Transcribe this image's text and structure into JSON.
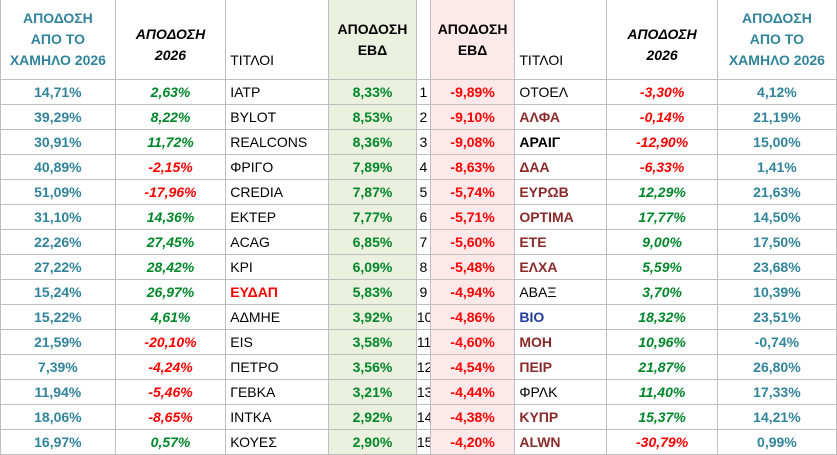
{
  "headers": {
    "left_from_low": [
      "ΑΠΟΔΟΣΗ",
      "ΑΠΟ ΤΟ",
      "ΧΑΜΗΛΟ 2026"
    ],
    "left_ytd": [
      "ΑΠΟΔΟΣΗ",
      "2026"
    ],
    "left_titles": "ΤΙΤΛΟΙ",
    "left_week": [
      "ΑΠΟΔΟΣΗ",
      "ΕΒΔ"
    ],
    "right_week": [
      "ΑΠΟΔΟΣΗ",
      "ΕΒΔ"
    ],
    "right_titles": "ΤΙΤΛΟΙ",
    "right_ytd": [
      "ΑΠΟΔΟΣΗ",
      "2026"
    ],
    "right_from_low": [
      "ΑΠΟΔΟΣΗ",
      "ΑΠΟ ΤΟ",
      "ΧΑΜΗΛΟ 2026"
    ]
  },
  "rows": [
    {
      "l_low": "14,71%",
      "l_ytd": "2,63%",
      "l_ytd_dir": "pos",
      "l_tk": "ΙΑΤΡ",
      "l_tk_style": "",
      "l_wk": "8,33%",
      "rank": "1",
      "r_wk": "-9,89%",
      "r_tk": "ΟΤΟΕΛ",
      "r_tk_style": "",
      "r_ytd": "-3,30%",
      "r_ytd_dir": "neg",
      "r_low": "4,12%"
    },
    {
      "l_low": "39,29%",
      "l_ytd": "8,22%",
      "l_ytd_dir": "pos",
      "l_tk": "BYLOT",
      "l_tk_style": "",
      "l_wk": "8,53%",
      "rank": "2",
      "r_wk": "-9,10%",
      "r_tk": "ΑΛΦΑ",
      "r_tk_style": "bold brown",
      "r_ytd": "-0,14%",
      "r_ytd_dir": "neg",
      "r_low": "21,19%"
    },
    {
      "l_low": "30,91%",
      "l_ytd": "11,72%",
      "l_ytd_dir": "pos",
      "l_tk": "REALCONS",
      "l_tk_style": "",
      "l_wk": "8,36%",
      "rank": "3",
      "r_wk": "-9,08%",
      "r_tk": "ΑΡΑΙΓ",
      "r_tk_style": "bold",
      "r_ytd": "-12,90%",
      "r_ytd_dir": "neg",
      "r_low": "15,00%"
    },
    {
      "l_low": "40,89%",
      "l_ytd": "-2,15%",
      "l_ytd_dir": "neg",
      "l_tk": "ΦΡΙΓΟ",
      "l_tk_style": "",
      "l_wk": "7,89%",
      "rank": "4",
      "r_wk": "-8,63%",
      "r_tk": "ΔΑΑ",
      "r_tk_style": "bold brown",
      "r_ytd": "-6,33%",
      "r_ytd_dir": "neg",
      "r_low": "1,41%"
    },
    {
      "l_low": "51,09%",
      "l_ytd": "-17,96%",
      "l_ytd_dir": "neg",
      "l_tk": "CREDIA",
      "l_tk_style": "",
      "l_wk": "7,87%",
      "rank": "5",
      "r_wk": "-5,74%",
      "r_tk": "ΕΥΡΩΒ",
      "r_tk_style": "bold brown",
      "r_ytd": "12,29%",
      "r_ytd_dir": "pos",
      "r_low": "21,63%"
    },
    {
      "l_low": "31,10%",
      "l_ytd": "14,36%",
      "l_ytd_dir": "pos",
      "l_tk": "ΕΚΤΕΡ",
      "l_tk_style": "",
      "l_wk": "7,77%",
      "rank": "6",
      "r_wk": "-5,71%",
      "r_tk": "ΟΡΤΙΜΑ",
      "r_tk_style": "bold brown",
      "r_ytd": "17,77%",
      "r_ytd_dir": "pos",
      "r_low": "14,50%"
    },
    {
      "l_low": "22,26%",
      "l_ytd": "27,45%",
      "l_ytd_dir": "pos",
      "l_tk": "ACAG",
      "l_tk_style": "",
      "l_wk": "6,85%",
      "rank": "7",
      "r_wk": "-5,60%",
      "r_tk": "ΕΤΕ",
      "r_tk_style": "bold brown",
      "r_ytd": "9,00%",
      "r_ytd_dir": "pos",
      "r_low": "17,50%"
    },
    {
      "l_low": "27,22%",
      "l_ytd": "28,42%",
      "l_ytd_dir": "pos",
      "l_tk": "ΚΡΙ",
      "l_tk_style": "",
      "l_wk": "6,09%",
      "rank": "8",
      "r_wk": "-5,48%",
      "r_tk": "ΕΛΧΑ",
      "r_tk_style": "bold brown",
      "r_ytd": "5,59%",
      "r_ytd_dir": "pos",
      "r_low": "23,68%"
    },
    {
      "l_low": "15,24%",
      "l_ytd": "26,97%",
      "l_ytd_dir": "pos",
      "l_tk": "ΕΥΔΑΠ",
      "l_tk_style": "bold red",
      "l_wk": "5,83%",
      "rank": "9",
      "r_wk": "-4,94%",
      "r_tk": "ΑΒΑΞ",
      "r_tk_style": "",
      "r_ytd": "3,70%",
      "r_ytd_dir": "pos",
      "r_low": "10,39%"
    },
    {
      "l_low": "15,22%",
      "l_ytd": "4,61%",
      "l_ytd_dir": "pos",
      "l_tk": "ΑΔΜΗΕ",
      "l_tk_style": "",
      "l_wk": "3,92%",
      "rank": "10",
      "r_wk": "-4,86%",
      "r_tk": "ΒΙΟ",
      "r_tk_style": "bold blue",
      "r_ytd": "18,32%",
      "r_ytd_dir": "pos",
      "r_low": "23,51%"
    },
    {
      "l_low": "21,59%",
      "l_ytd": "-20,10%",
      "l_ytd_dir": "neg",
      "l_tk": "EIS",
      "l_tk_style": "",
      "l_wk": "3,58%",
      "rank": "11",
      "r_wk": "-4,60%",
      "r_tk": "ΜΟΗ",
      "r_tk_style": "bold brown",
      "r_ytd": "10,96%",
      "r_ytd_dir": "pos",
      "r_low": "-0,74%"
    },
    {
      "l_low": "7,39%",
      "l_ytd": "-4,24%",
      "l_ytd_dir": "neg",
      "l_tk": "ΠΕΤΡΟ",
      "l_tk_style": "",
      "l_wk": "3,56%",
      "rank": "12",
      "r_wk": "-4,54%",
      "r_tk": "ΠΕΙΡ",
      "r_tk_style": "bold brown",
      "r_ytd": "21,87%",
      "r_ytd_dir": "pos",
      "r_low": "26,80%"
    },
    {
      "l_low": "11,94%",
      "l_ytd": "-5,46%",
      "l_ytd_dir": "neg",
      "l_tk": "ΓΕΒΚΑ",
      "l_tk_style": "",
      "l_wk": "3,21%",
      "rank": "13",
      "r_wk": "-4,44%",
      "r_tk": "ΦΡΛΚ",
      "r_tk_style": "",
      "r_ytd": "11,40%",
      "r_ytd_dir": "pos",
      "r_low": "17,33%"
    },
    {
      "l_low": "18,06%",
      "l_ytd": "-8,65%",
      "l_ytd_dir": "neg",
      "l_tk": "ΙΝΤΚΑ",
      "l_tk_style": "",
      "l_wk": "2,92%",
      "rank": "14",
      "r_wk": "-4,38%",
      "r_tk": "ΚΥΠΡ",
      "r_tk_style": "bold brown",
      "r_ytd": "15,37%",
      "r_ytd_dir": "pos",
      "r_low": "14,21%"
    },
    {
      "l_low": "16,97%",
      "l_ytd": "0,57%",
      "l_ytd_dir": "pos",
      "l_tk": "ΚΟΥΕΣ",
      "l_tk_style": "",
      "l_wk": "2,90%",
      "rank": "15",
      "r_wk": "-4,20%",
      "r_tk": "ALWN",
      "r_tk_style": "bold brown",
      "r_ytd": "-30,79%",
      "r_ytd_dir": "neg",
      "r_low": "0,99%"
    }
  ],
  "colors": {
    "teal": "#31849b",
    "positive": "#00872a",
    "negative": "#ff0000",
    "gainers_bg": "#ebf1de",
    "losers_bg": "#fde9ea",
    "ticker_brown": "#8b2a2a",
    "ticker_blue": "#1f3f9a"
  }
}
